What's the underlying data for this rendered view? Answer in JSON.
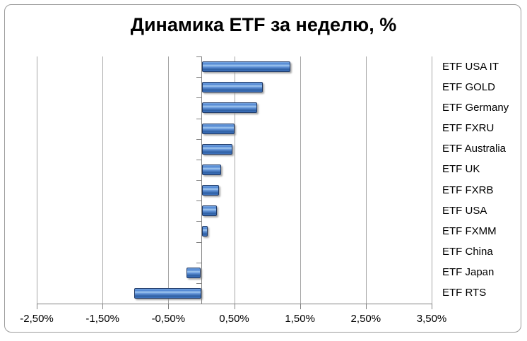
{
  "title": "Динамика ETF за неделю, %",
  "chart_data": {
    "type": "bar",
    "orientation": "horizontal",
    "title": "Динамика ETF за неделю, %",
    "categories": [
      "ETF USA IT",
      "ETF GOLD",
      "ETF Germany",
      "ETF FXRU",
      "ETF Australia",
      "ETF UK",
      "ETF FXRB",
      "ETF USA",
      "ETF FXMM",
      "ETF China",
      "ETF Japan",
      "ETF RTS"
    ],
    "values": [
      1.34,
      0.92,
      0.84,
      0.49,
      0.46,
      0.29,
      0.26,
      0.23,
      0.09,
      0.0,
      -0.22,
      -1.02
    ],
    "xlabel": "",
    "ylabel": "",
    "xlim": [
      -2.5,
      3.5
    ],
    "x_tick_values": [
      -2.5,
      -1.5,
      -0.5,
      0.5,
      1.5,
      2.5,
      3.5
    ],
    "x_tick_labels": [
      "-2,50%",
      "-1,50%",
      "-0,50%",
      "0,50%",
      "1,50%",
      "2,50%",
      "3,50%"
    ],
    "grid": "vertical-on",
    "legend": "none",
    "colors": {
      "bar_fill": "#4f85d2",
      "bar_border": "#1f3864",
      "gridline": "#a6a6a6",
      "axis": "#808080",
      "text": "#000000",
      "background": "#ffffff",
      "frame_border": "#9b9b9b"
    }
  }
}
